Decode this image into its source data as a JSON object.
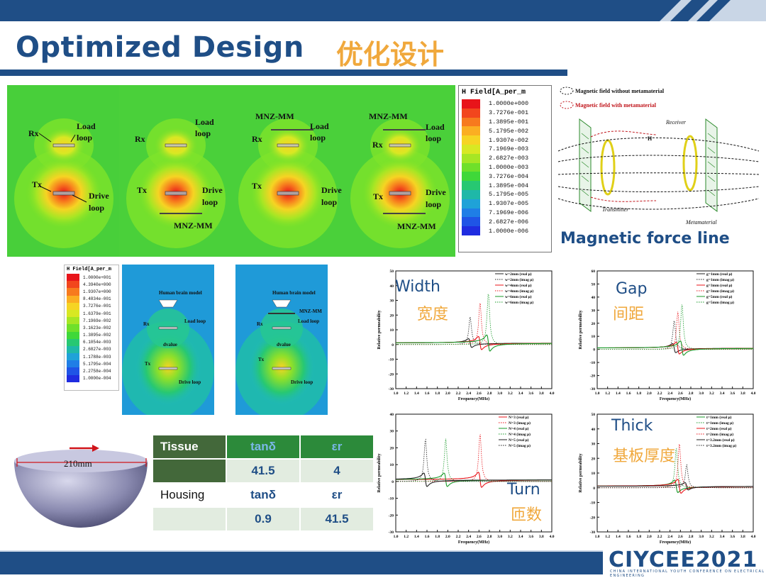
{
  "slide": {
    "title": "Optimized Design",
    "title_cn": "优化设计",
    "brand_color": "#1f4e86",
    "accent_color": "#f0a83c"
  },
  "sim_panel": {
    "rx": "Rx",
    "tx": "Tx",
    "load_loop_1": "Load",
    "load_loop_2": "loop",
    "drive_loop_1": "Drive",
    "drive_loop_2": "loop",
    "mnz": "MNZ-MM"
  },
  "legend_main": {
    "title": "H Field[A_per_m",
    "values": [
      "1.0000e+000",
      "3.7276e-001",
      "1.3895e-001",
      "5.1795e-002",
      "1.9307e-002",
      "7.1969e-003",
      "2.6827e-003",
      "1.0000e-003",
      "3.7276e-004",
      "1.3895e-004",
      "5.1795e-005",
      "1.9307e-005",
      "7.1969e-006",
      "2.6827e-006",
      "1.0000e-006"
    ],
    "colors": [
      "#e8141a",
      "#f2461d",
      "#f77a1e",
      "#fbae22",
      "#f6d423",
      "#d8e823",
      "#a6e624",
      "#6fe02a",
      "#3fd839",
      "#27c872",
      "#1fb8a8",
      "#1fa2d8",
      "#1f7ee6",
      "#1f54e6",
      "#1f2ce0"
    ]
  },
  "diagram": {
    "legend_without": "Magnetic field without  metamaterial",
    "legend_with": "Magnetic field with  metamaterial",
    "receiver": "Receiver",
    "transmitter": "Transmitter",
    "metamaterial": "Metamaterial",
    "h_label": "H",
    "caption": "Magnetic force line"
  },
  "legend_brain": {
    "title": "H Field[A_per_m",
    "values": [
      "1.0000e+001",
      "4.3940e+000",
      "1.9307e+000",
      "8.4834e-001",
      "3.7276e-001",
      "1.6379e-001",
      "7.1969e-002",
      "3.1623e-002",
      "1.3895e-002",
      "6.1054e-003",
      "2.6827e-003",
      "1.1788e-003",
      "5.1795e-004",
      "2.2758e-004",
      "1.0000e-004"
    ]
  },
  "brain_panel": {
    "human": "Human brain model",
    "human2": "Human brain model",
    "load_loop": "Load loop",
    "drive_loop": "Drive loop",
    "mnz": "MNZ-MM",
    "rx": "Rx",
    "tx": "Tx",
    "dvalue": "dvalue"
  },
  "charts": {
    "xlabel": "Frequency(MHz)",
    "ylabel": "Relative permeability",
    "width": {
      "label": "Width",
      "label_cn": "宽度",
      "legend": [
        "w=2mm (real μ)",
        "w=2mm (imag μ)",
        "w=4mm (real μ)",
        "w=4mm (imag μ)",
        "w=6mm (real μ)",
        "w=6mm (imag μ)"
      ]
    },
    "gap": {
      "label": "Gap",
      "label_cn": "间距",
      "legend": [
        "g=1mm (real μ)",
        "g=1mm (imag μ)",
        "g=3mm (real μ)",
        "g=3mm (imag μ)",
        "g=5mm (real μ)",
        "g=5mm (imag μ)"
      ]
    },
    "turn": {
      "label": "Turn",
      "label_cn": "匝数",
      "legend": [
        "N=3 (real μ)",
        "N=3 (imag μ)",
        "N=4 (real μ)",
        "N=4 (imag μ)",
        "N=5 (real μ)",
        "N=5 (imag μ)"
      ]
    },
    "thick": {
      "label": "Thick",
      "label_cn": "基板厚度",
      "legend": [
        "t=1mm (real μ)",
        "t=1mm (imag μ)",
        "t=2mm (real μ)",
        "t=2mm (imag μ)",
        "t=3.2mm (real μ)",
        "t=3.2mm (imag μ)"
      ]
    }
  },
  "chart_data": [
    {
      "type": "line",
      "title": "Width",
      "xlabel": "Frequency(MHz)",
      "ylabel": "Relative permeability",
      "xlim": [
        1.0,
        4.0
      ],
      "ylim": [
        -30,
        50
      ],
      "x_ticks": [
        "1.0",
        "1.2",
        "1.4",
        "1.6",
        "1.8",
        "2.0",
        "2.2",
        "2.4",
        "2.6",
        "2.8",
        "3.0",
        "3.2",
        "3.4",
        "3.6",
        "3.8",
        "4.0"
      ],
      "y_ticks": [
        "-30",
        "-20",
        "-10",
        "0",
        "10",
        "20",
        "30",
        "40",
        "50"
      ],
      "series": [
        {
          "name": "w=2mm",
          "color": "#222222",
          "resonance": 2.43,
          "amp": 12
        },
        {
          "name": "w=4mm",
          "color": "#e8141a",
          "resonance": 2.62,
          "amp": 18
        },
        {
          "name": "w=6mm",
          "color": "#1a9a2a",
          "resonance": 2.78,
          "amp": 22
        }
      ]
    },
    {
      "type": "line",
      "title": "Gap",
      "xlabel": "Frequency(MHz)",
      "ylabel": "Relative permeability",
      "xlim": [
        1.0,
        4.0
      ],
      "ylim": [
        -30,
        60
      ],
      "x_ticks": [
        "1.0",
        "1.2",
        "1.4",
        "1.6",
        "1.8",
        "2.0",
        "2.2",
        "2.4",
        "2.6",
        "2.8",
        "3.0",
        "3.2",
        "3.4",
        "3.6",
        "3.8",
        "4.0"
      ],
      "y_ticks": [
        "-30",
        "-20",
        "-10",
        "0",
        "10",
        "20",
        "30",
        "40",
        "50",
        "60"
      ],
      "series": [
        {
          "name": "g=1mm",
          "color": "#222222",
          "resonance": 2.48,
          "amp": 14
        },
        {
          "name": "g=3mm",
          "color": "#e8141a",
          "resonance": 2.55,
          "amp": 18
        },
        {
          "name": "g=5mm",
          "color": "#1a9a2a",
          "resonance": 2.63,
          "amp": 22
        }
      ]
    },
    {
      "type": "line",
      "title": "Turn",
      "xlabel": "Frequency(MHz)",
      "ylabel": "Relative permeability",
      "xlim": [
        1.0,
        4.0
      ],
      "ylim": [
        -30,
        40
      ],
      "x_ticks": [
        "1.0",
        "1.2",
        "1.4",
        "1.6",
        "1.8",
        "2.0",
        "2.2",
        "2.4",
        "2.6",
        "2.8",
        "3.0",
        "3.2",
        "3.4",
        "3.6",
        "3.8",
        "4.0"
      ],
      "y_ticks": [
        "-30",
        "-20",
        "-10",
        "0",
        "10",
        "20",
        "30",
        "40"
      ],
      "series": [
        {
          "name": "N=3",
          "color": "#e8141a",
          "resonance": 2.62,
          "amp": 18
        },
        {
          "name": "N=4",
          "color": "#1a9a2a",
          "resonance": 1.96,
          "amp": 16
        },
        {
          "name": "N=5",
          "color": "#222222",
          "resonance": 1.57,
          "amp": 16
        }
      ]
    },
    {
      "type": "line",
      "title": "Thick",
      "xlabel": "Frequency(MHz)",
      "ylabel": "Relative permeability",
      "xlim": [
        1.0,
        4.0
      ],
      "ylim": [
        -30,
        50
      ],
      "x_ticks": [
        "1.0",
        "1.2",
        "1.4",
        "1.6",
        "1.8",
        "2.0",
        "2.2",
        "2.4",
        "2.6",
        "2.8",
        "3.0",
        "3.2",
        "3.4",
        "3.6",
        "3.8",
        "4.0"
      ],
      "y_ticks": [
        "-30",
        "-20",
        "-10",
        "0",
        "10",
        "20",
        "30",
        "40",
        "50"
      ],
      "series": [
        {
          "name": "t=1mm",
          "color": "#1a9a2a",
          "resonance": 2.52,
          "amp": 17
        },
        {
          "name": "t=2mm",
          "color": "#e8141a",
          "resonance": 2.58,
          "amp": 19
        },
        {
          "name": "t=3.2mm",
          "color": "#222222",
          "resonance": 2.72,
          "amp": 10
        }
      ]
    }
  ],
  "table": {
    "row1": [
      "Tissue",
      "tanδ",
      "εr"
    ],
    "row2": [
      "",
      "41.5",
      "4"
    ],
    "row3": [
      "Housing",
      "tanδ",
      "εr"
    ],
    "row4": [
      "",
      "0.9",
      "41.5"
    ]
  },
  "sphere": {
    "dimension": "210mm"
  },
  "logo": {
    "text": "CIYCEE2021",
    "sub": "CHINA INTERNATIONAL YOUTH CONFERENCE ON ELECTRICAL ENGINEERING"
  }
}
